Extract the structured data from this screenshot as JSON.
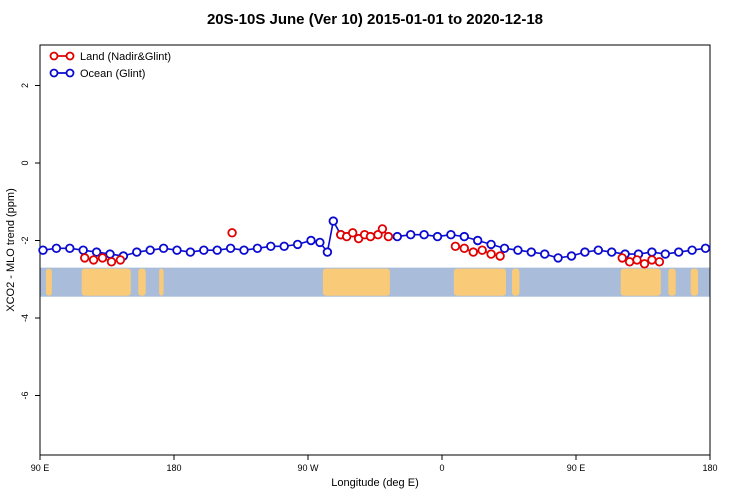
{
  "title": "20S-10S June (Ver 10)   2015-01-01 to 2020-12-18",
  "axes": {
    "x_label": "Longitude (deg E)",
    "y_label": "XCO2 - MLO trend (ppm)",
    "x_ticks": [
      {
        "pos": 0,
        "label": "90 E"
      },
      {
        "pos": 90,
        "label": "180"
      },
      {
        "pos": 180,
        "label": "90 W"
      },
      {
        "pos": 270,
        "label": "0"
      },
      {
        "pos": 360,
        "label": "90 E"
      },
      {
        "pos": 450,
        "label": "180"
      }
    ],
    "y_ticks": [
      {
        "value": 2,
        "label": "2"
      },
      {
        "value": 0,
        "label": "0"
      },
      {
        "value": -2,
        "label": "-2"
      },
      {
        "value": -4,
        "label": "-4"
      },
      {
        "value": -6,
        "label": "-6"
      }
    ]
  },
  "legend": {
    "items": [
      {
        "label": "Land (Nadir&Glint)",
        "color": "#e00000"
      },
      {
        "label": "Ocean (Glint)",
        "color": "#0a0ad0"
      }
    ]
  },
  "chart_data": {
    "type": "scatter",
    "title": "20S-10S June (Ver 10)   2015-01-01 to 2020-12-18",
    "xlabel": "Longitude (deg E)",
    "ylabel": "XCO2 - MLO trend (ppm)",
    "x_unit": "degrees eastward from 90E; axis wraps 90E, 180, 90W, 0, 90E, 180",
    "xlim": [
      0,
      450
    ],
    "ylim": [
      -7.5,
      3.0
    ],
    "grid": false,
    "legend_position": "top-left-inside",
    "series": [
      {
        "name": "Land (Nadir&Glint)",
        "color": "#e00000",
        "marker": "open-circle",
        "points": [
          [
            30,
            -2.45
          ],
          [
            36,
            -2.5
          ],
          [
            42,
            -2.45
          ],
          [
            48,
            -2.55
          ],
          [
            54,
            -2.5
          ],
          [
            129,
            -1.8
          ],
          [
            202,
            -1.85
          ],
          [
            206,
            -1.9
          ],
          [
            210,
            -1.8
          ],
          [
            214,
            -1.95
          ],
          [
            218,
            -1.85
          ],
          [
            222,
            -1.9
          ],
          [
            227,
            -1.85
          ],
          [
            230,
            -1.7
          ],
          [
            234,
            -1.9
          ],
          [
            279,
            -2.15
          ],
          [
            285,
            -2.2
          ],
          [
            291,
            -2.3
          ],
          [
            297,
            -2.25
          ],
          [
            303,
            -2.35
          ],
          [
            309,
            -2.4
          ],
          [
            391,
            -2.45
          ],
          [
            396,
            -2.55
          ],
          [
            401,
            -2.5
          ],
          [
            406,
            -2.6
          ],
          [
            411,
            -2.5
          ],
          [
            416,
            -2.55
          ]
        ]
      },
      {
        "name": "Ocean (Glint)",
        "color": "#0a0ad0",
        "marker": "open-circle",
        "points": [
          [
            2,
            -2.25
          ],
          [
            11,
            -2.2
          ],
          [
            20,
            -2.2
          ],
          [
            29,
            -2.25
          ],
          [
            38,
            -2.3
          ],
          [
            47,
            -2.35
          ],
          [
            56,
            -2.4
          ],
          [
            65,
            -2.3
          ],
          [
            74,
            -2.25
          ],
          [
            83,
            -2.2
          ],
          [
            92,
            -2.25
          ],
          [
            101,
            -2.3
          ],
          [
            110,
            -2.25
          ],
          [
            119,
            -2.25
          ],
          [
            128,
            -2.2
          ],
          [
            137,
            -2.25
          ],
          [
            146,
            -2.2
          ],
          [
            155,
            -2.15
          ],
          [
            164,
            -2.15
          ],
          [
            173,
            -2.1
          ],
          [
            182,
            -2.0
          ],
          [
            188,
            -2.05
          ],
          [
            193,
            -2.3
          ],
          [
            197,
            -1.5
          ],
          [
            202,
            -1.85
          ],
          [
            240,
            -1.9
          ],
          [
            249,
            -1.85
          ],
          [
            258,
            -1.85
          ],
          [
            267,
            -1.9
          ],
          [
            276,
            -1.85
          ],
          [
            285,
            -1.9
          ],
          [
            294,
            -2.0
          ],
          [
            303,
            -2.1
          ],
          [
            312,
            -2.2
          ],
          [
            321,
            -2.25
          ],
          [
            330,
            -2.3
          ],
          [
            339,
            -2.35
          ],
          [
            348,
            -2.45
          ],
          [
            357,
            -2.4
          ],
          [
            366,
            -2.3
          ],
          [
            375,
            -2.25
          ],
          [
            384,
            -2.3
          ],
          [
            393,
            -2.35
          ],
          [
            402,
            -2.35
          ],
          [
            411,
            -2.3
          ],
          [
            420,
            -2.35
          ],
          [
            429,
            -2.3
          ],
          [
            438,
            -2.25
          ],
          [
            447,
            -2.2
          ]
        ]
      }
    ],
    "map_band": {
      "description": "latitude-band world map strip 20S-10S",
      "ocean_color": "#a9bcd9",
      "land_color": "#f9ca77",
      "y_top": -2.7,
      "y_bottom": -3.45,
      "land_segments": [
        [
          4,
          8
        ],
        [
          28,
          61
        ],
        [
          66,
          71
        ],
        [
          80,
          83
        ],
        [
          190,
          235
        ],
        [
          278,
          313
        ],
        [
          317,
          322
        ],
        [
          390,
          417
        ],
        [
          422,
          427
        ],
        [
          437,
          442
        ]
      ]
    }
  }
}
